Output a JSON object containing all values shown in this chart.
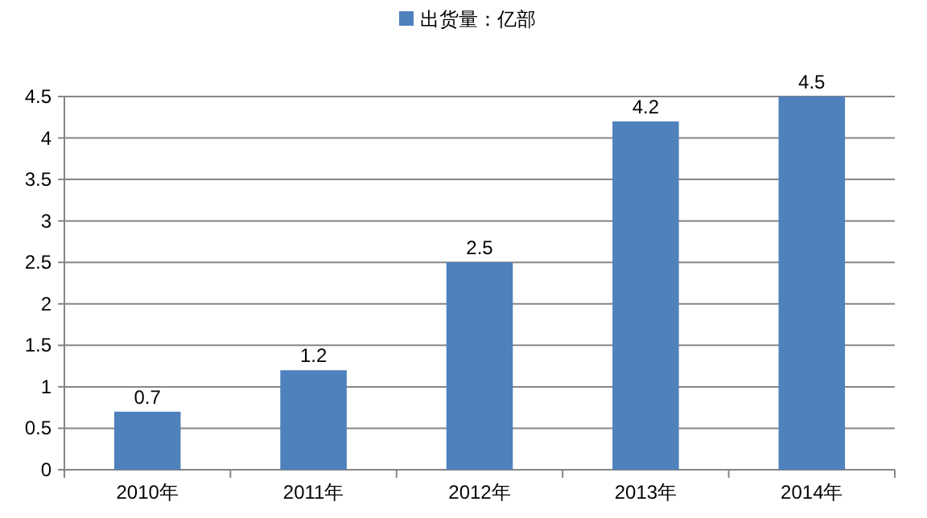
{
  "chart_data": {
    "type": "bar",
    "categories": [
      "2010年",
      "2011年",
      "2012年",
      "2013年",
      "2014年"
    ],
    "series": [
      {
        "name": "出货量：亿部",
        "color": "#4f81bd",
        "values": [
          0.7,
          1.2,
          2.5,
          4.2,
          4.5
        ]
      }
    ],
    "ylim": [
      0,
      4.5
    ],
    "yticks": [
      0,
      0.5,
      1,
      1.5,
      2,
      2.5,
      3,
      3.5,
      4,
      4.5
    ],
    "grid": "y",
    "legend": "top",
    "data_labels": true
  }
}
